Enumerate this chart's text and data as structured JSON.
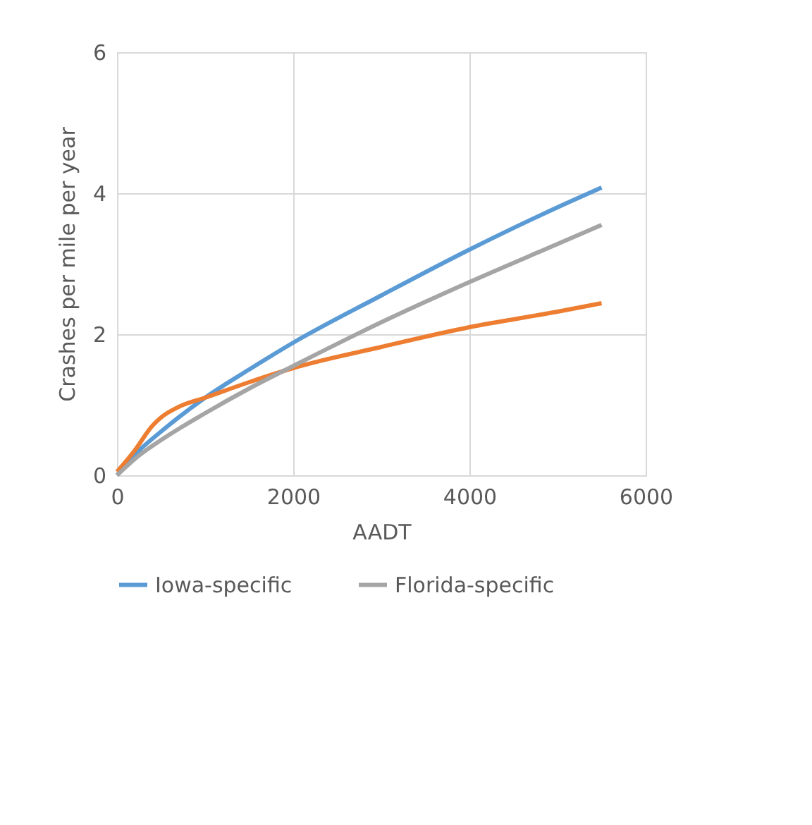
{
  "chart_data": {
    "type": "line",
    "xlabel": "AADT",
    "ylabel": "Crashes per mile per year",
    "xlim": [
      0,
      6000
    ],
    "xticks": [
      0,
      2000,
      4000,
      6000
    ],
    "ylim": [
      0,
      6
    ],
    "yticks": [
      0,
      2,
      4,
      6
    ],
    "grid": true,
    "legend": "bottom",
    "line_style": "solid",
    "marker": "none",
    "series": [
      {
        "name": "Iowa-specific",
        "color": "#5b9bd5",
        "x": [
          0,
          250,
          500,
          1000,
          1500,
          2000,
          3000,
          4000,
          5000,
          5500
        ],
        "values": [
          0,
          0.35,
          0.62,
          1.1,
          1.5,
          1.88,
          2.55,
          3.2,
          3.8,
          4.08
        ]
      },
      {
        "color": "#ed7d31",
        "x": [
          0,
          200,
          400,
          500,
          700,
          1000,
          1500,
          2000,
          3000,
          4000,
          5000,
          5500
        ],
        "values": [
          0.05,
          0.35,
          0.7,
          0.82,
          0.97,
          1.1,
          1.32,
          1.52,
          1.82,
          2.1,
          2.32,
          2.44
        ]
      },
      {
        "name": "Florida-specific",
        "color": "#a5a5a5",
        "x": [
          0,
          250,
          500,
          1000,
          1500,
          2000,
          3000,
          4000,
          5000,
          5500
        ],
        "values": [
          0,
          0.28,
          0.5,
          0.88,
          1.23,
          1.55,
          2.17,
          2.74,
          3.28,
          3.55
        ]
      }
    ]
  }
}
